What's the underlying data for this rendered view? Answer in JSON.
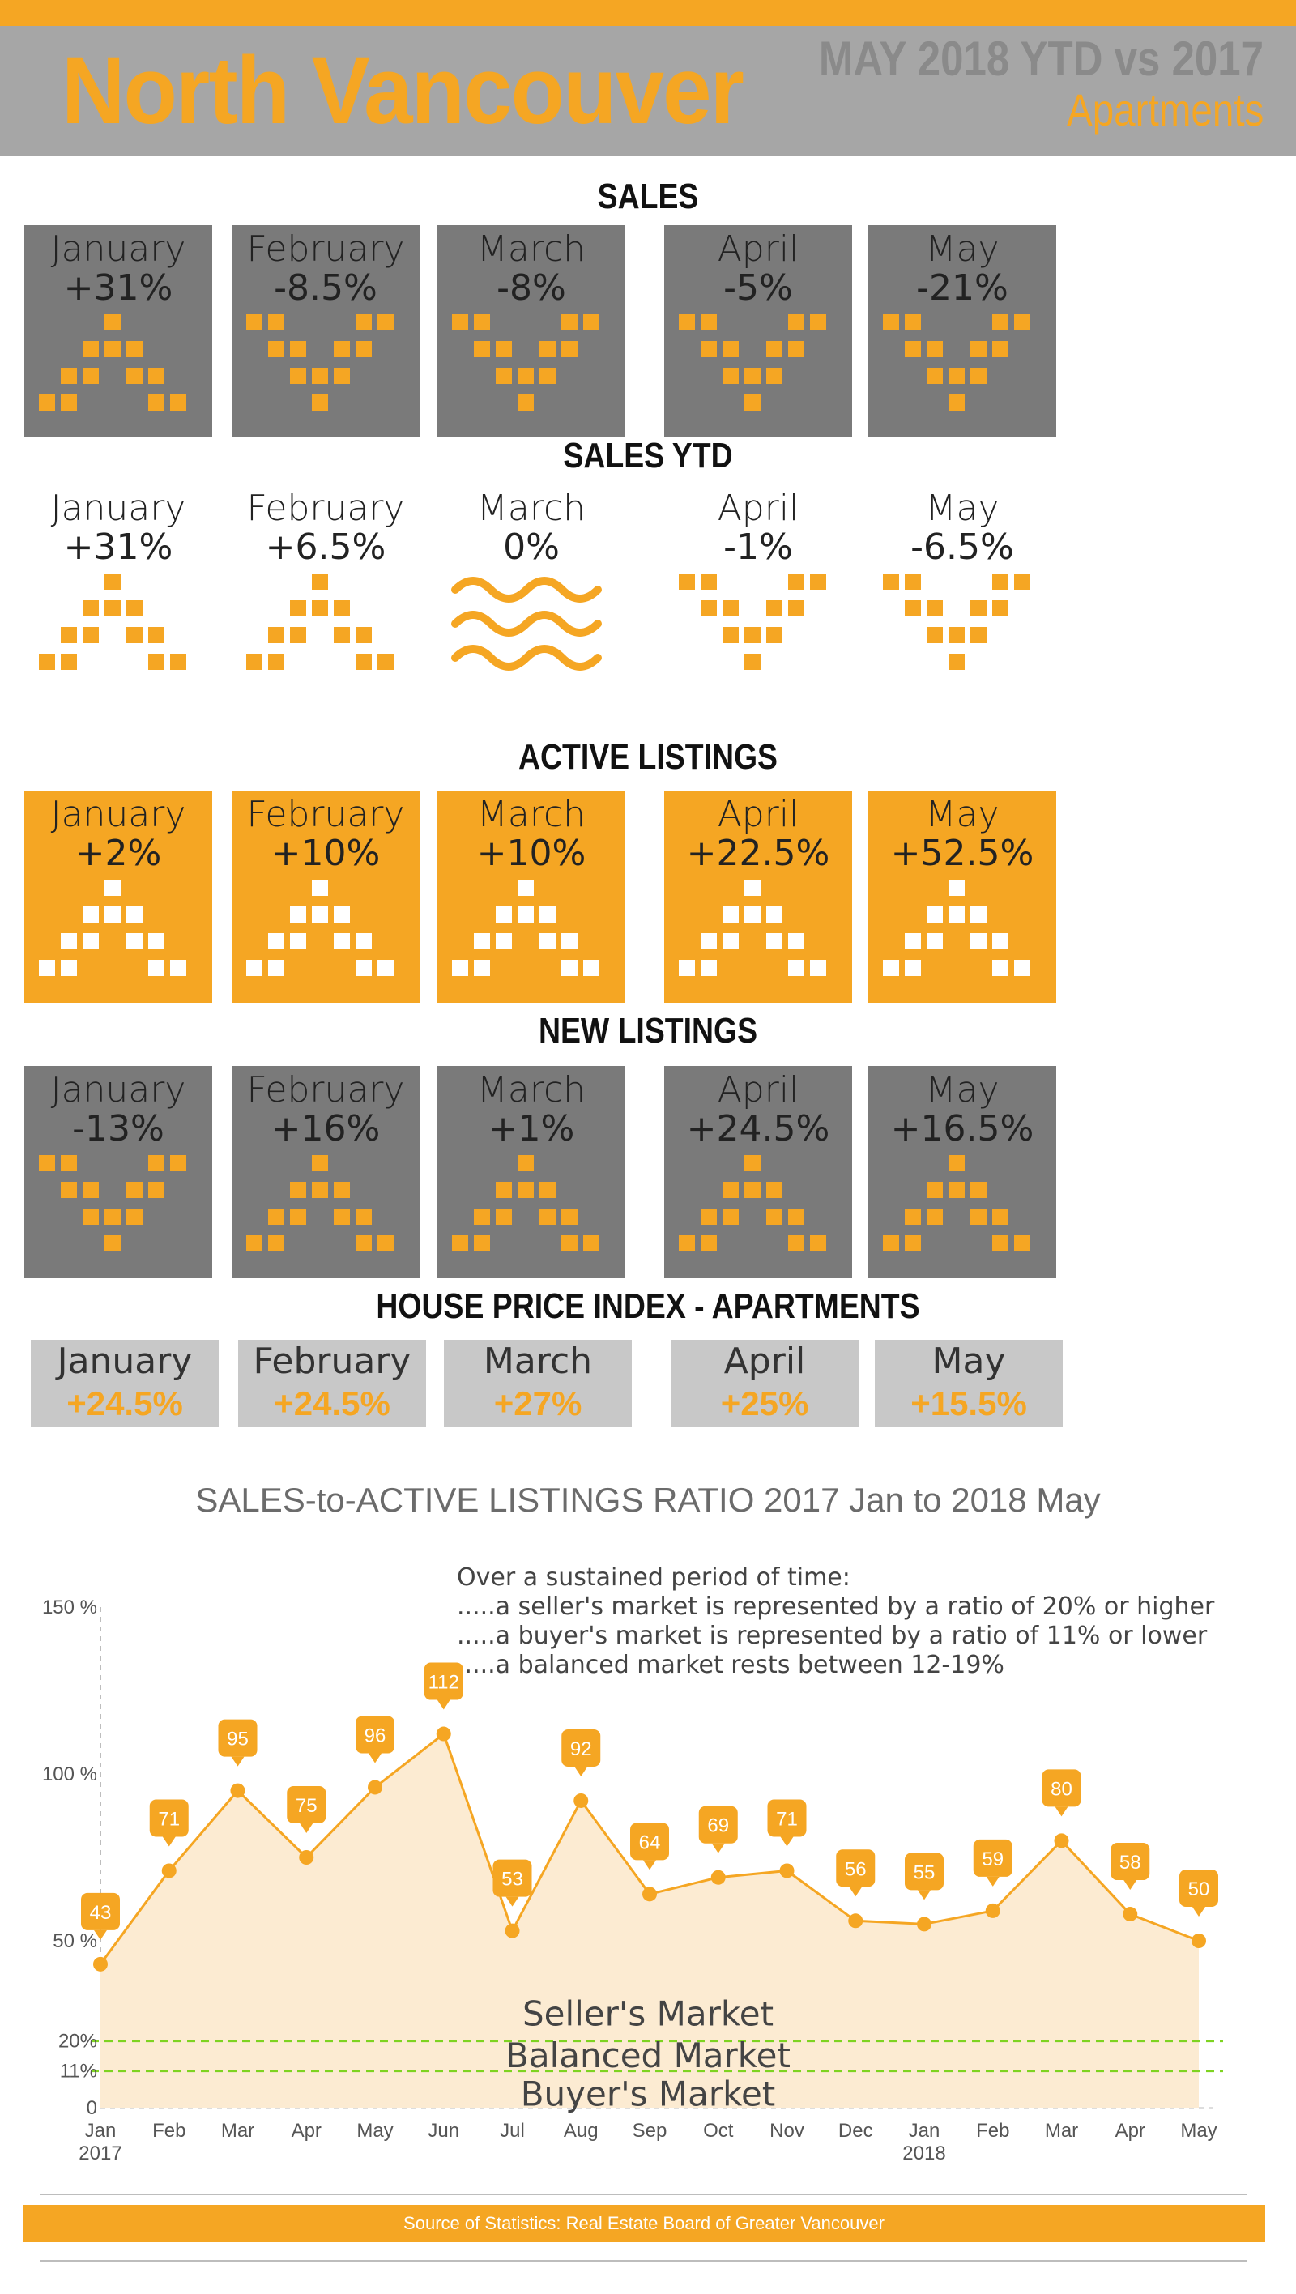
{
  "header": {
    "title": "North Vancouver",
    "period": "MAY 2018 YTD vs 2017",
    "segment": "Apartments"
  },
  "sections": {
    "sales": {
      "title": "SALES",
      "tiles": [
        {
          "month": "January",
          "value": "+31%",
          "dir": "up"
        },
        {
          "month": "February",
          "value": "-8.5%",
          "dir": "down"
        },
        {
          "month": "March",
          "value": "-8%",
          "dir": "down"
        },
        {
          "month": "April",
          "value": "-5%",
          "dir": "down"
        },
        {
          "month": "May",
          "value": "-21%",
          "dir": "down"
        }
      ]
    },
    "sales_ytd": {
      "title": "SALES YTD",
      "tiles": [
        {
          "month": "January",
          "value": "+31%",
          "dir": "up"
        },
        {
          "month": "February",
          "value": "+6.5%",
          "dir": "up"
        },
        {
          "month": "March",
          "value": "0%",
          "dir": "flat"
        },
        {
          "month": "April",
          "value": "-1%",
          "dir": "down"
        },
        {
          "month": "May",
          "value": "-6.5%",
          "dir": "down"
        }
      ]
    },
    "active_listings": {
      "title": "ACTIVE LISTINGS",
      "tiles": [
        {
          "month": "January",
          "value": "+2%",
          "dir": "up"
        },
        {
          "month": "February",
          "value": "+10%",
          "dir": "up"
        },
        {
          "month": "March",
          "value": "+10%",
          "dir": "up"
        },
        {
          "month": "April",
          "value": "+22.5%",
          "dir": "up"
        },
        {
          "month": "May",
          "value": "+52.5%",
          "dir": "up"
        }
      ]
    },
    "new_listings": {
      "title": "NEW LISTINGS",
      "tiles": [
        {
          "month": "January",
          "value": "-13%",
          "dir": "down"
        },
        {
          "month": "February",
          "value": "+16%",
          "dir": "up"
        },
        {
          "month": "March",
          "value": "+1%",
          "dir": "up"
        },
        {
          "month": "April",
          "value": "+24.5%",
          "dir": "up"
        },
        {
          "month": "May",
          "value": "+16.5%",
          "dir": "up"
        }
      ]
    },
    "hpi": {
      "title": "HOUSE PRICE INDEX - APARTMENTS",
      "tiles": [
        {
          "month": "January",
          "value": "+24.5%"
        },
        {
          "month": "February",
          "value": "+24.5%"
        },
        {
          "month": "March",
          "value": "+27%"
        },
        {
          "month": "April",
          "value": "+25%"
        },
        {
          "month": "May",
          "value": "+15.5%"
        }
      ]
    }
  },
  "colors": {
    "accent": "#f5a623",
    "tile_gray": "#7a7a7a",
    "header_gray": "#a6a6a6",
    "area_fill": "#fcebd2",
    "threshold_line": "#7ed321"
  },
  "chart_notes": [
    "Over a sustained period of time:",
    ".....a seller's market is represented by a ratio of 20% or higher",
    ".....a buyer's market is represented by a ratio of 11% or lower",
    ".....a balanced market rests between 12-19%"
  ],
  "chart_data": {
    "type": "area",
    "title": "SALES-to-ACTIVE LISTINGS RATIO 2017 Jan to 2018 May",
    "categories": [
      "Jan",
      "Feb",
      "Mar",
      "Apr",
      "May",
      "Jun",
      "Jul",
      "Aug",
      "Sep",
      "Oct",
      "Nov",
      "Dec",
      "Jan",
      "Feb",
      "Mar",
      "Apr",
      "May"
    ],
    "year_labels": {
      "0": "2017",
      "12": "2018"
    },
    "values": [
      43,
      71,
      95,
      75,
      96,
      112,
      53,
      92,
      64,
      69,
      71,
      56,
      55,
      59,
      80,
      58,
      50
    ],
    "y_ticks": [
      {
        "value": 0,
        "label": "0"
      },
      {
        "value": 11,
        "label": "11%"
      },
      {
        "value": 20,
        "label": "20%"
      },
      {
        "value": 50,
        "label": "50 %"
      },
      {
        "value": 100,
        "label": "100 %"
      },
      {
        "value": 150,
        "label": "150 %"
      }
    ],
    "thresholds": [
      20,
      11
    ],
    "ylim": [
      0,
      150
    ],
    "zones": [
      "Seller's Market",
      "Balanced Market",
      "Buyer's Market"
    ]
  },
  "footer": {
    "source": "Source of Statistics: Real Estate Board of Greater Vancouver"
  }
}
